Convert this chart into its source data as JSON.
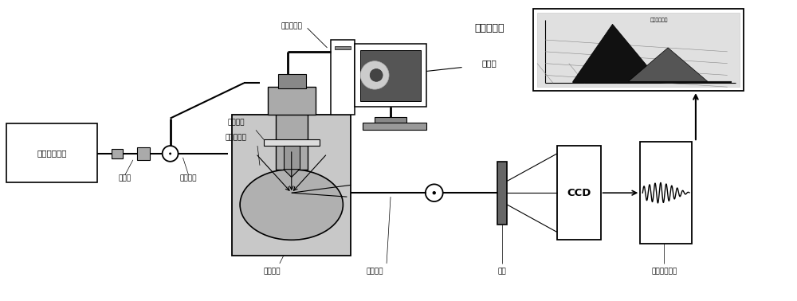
{
  "bg_color": "#ffffff",
  "fig_width": 10.0,
  "fig_height": 3.78,
  "labels": {
    "laser": "可调谐激光器",
    "coupler": "耦合器",
    "excite_fiber": "激发光纤",
    "microscope_camera": "显微摄像机",
    "sample_stage": "样品平台",
    "ellipse_pool": "椭球样品池",
    "coupling_lens": "耦合透镜",
    "fluor_fiber": "荧光光纤",
    "grating": "光栏",
    "ccd": "CCD",
    "two_d_spectrum": "二维荧光光谱",
    "full_spectrum": "荧光全光谱",
    "micro_photo": "显微摄"
  }
}
